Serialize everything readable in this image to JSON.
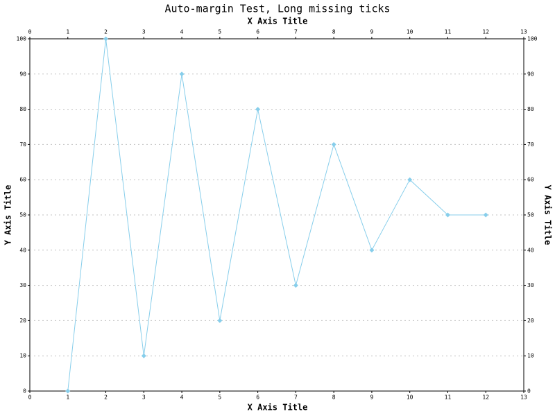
{
  "chart_data": {
    "type": "line",
    "title": "Auto-margin Test, Long missing ticks",
    "x_label": "X Axis Title",
    "y_label": "Y Axis Title",
    "x": [
      1,
      2,
      3,
      4,
      5,
      6,
      7,
      8,
      9,
      10,
      11,
      12
    ],
    "values": [
      0,
      100,
      10,
      90,
      20,
      80,
      30,
      70,
      40,
      60,
      50,
      50
    ],
    "color": "#87ceeb",
    "xlim": [
      0,
      13
    ],
    "xticks": [
      0,
      1,
      2,
      3,
      4,
      5,
      6,
      7,
      8,
      9,
      10,
      11,
      12,
      13
    ],
    "ylim": [
      0,
      100
    ],
    "yticks": [
      0,
      10,
      20,
      30,
      40,
      50,
      60,
      70,
      80,
      90,
      100
    ],
    "grid": true
  }
}
